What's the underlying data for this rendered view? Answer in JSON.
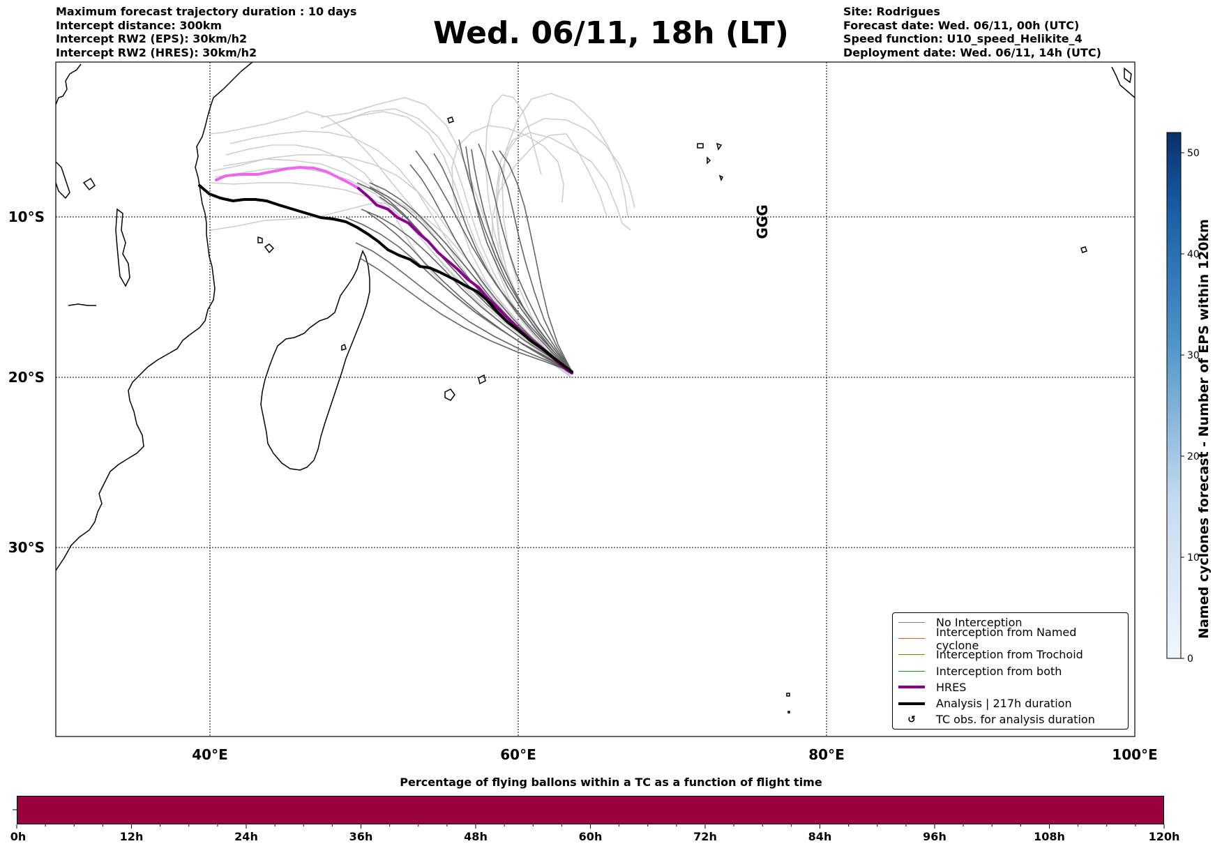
{
  "header": {
    "left_lines": [
      "Maximum forecast trajectory duration : 10 days",
      "Intercept distance: 300km",
      "Intercept RW2 (EPS):  30km/h2",
      "Intercept RW2 (HRES): 30km/h2"
    ],
    "title": "Wed. 06/11, 18h (LT)",
    "right_lines": [
      "Site: Rodrigues",
      "Forecast date: Wed. 06/11, 00h (UTC)",
      "Speed function: U10_speed_Helikite_4",
      "Deployment date: Wed. 06/11, 14h (UTC)"
    ]
  },
  "map": {
    "lon_ticks": [
      "40°E",
      "60°E",
      "80°E",
      "100°E"
    ],
    "lat_ticks": [
      "10°S",
      "20°S",
      "30°S"
    ],
    "cyclone_marker_text": "GGG",
    "colors": {
      "hres": "#8b008b",
      "hres_early": "#ee66ee",
      "analysis": "#000000",
      "eps_dark": "#555555",
      "eps_light": "#cccccc"
    }
  },
  "legend": {
    "items": [
      {
        "label": "No Interception",
        "color": "#808080",
        "style": "thin"
      },
      {
        "label": "Interception from Named cyclone",
        "color": "#ff5a1f",
        "style": "thin"
      },
      {
        "label": "Interception from Trochoid",
        "color": "#808000",
        "style": "thin"
      },
      {
        "label": "Interception from both",
        "color": "#228b22",
        "style": "thin"
      },
      {
        "label": "HRES",
        "color": "#8b008b",
        "style": "thick"
      },
      {
        "label": "Analysis | 217h duration",
        "color": "#000000",
        "style": "thick"
      },
      {
        "label": "TC obs. for analysis duration",
        "color": "#000000",
        "style": "symbol",
        "symbol": "↺"
      }
    ]
  },
  "colorbar": {
    "label": "Named cyclones forecast - Number of EPS within 120km",
    "ticks": [
      "0",
      "10",
      "20",
      "30",
      "40",
      "50"
    ],
    "range": [
      0,
      52
    ]
  },
  "time_bar": {
    "title": "Percentage of flying ballons within a TC as a function of flight time",
    "ticks": [
      "0h",
      "12h",
      "24h",
      "36h",
      "48h",
      "60h",
      "72h",
      "84h",
      "96h",
      "108h",
      "120h"
    ],
    "fill_color": "#9b0040"
  }
}
